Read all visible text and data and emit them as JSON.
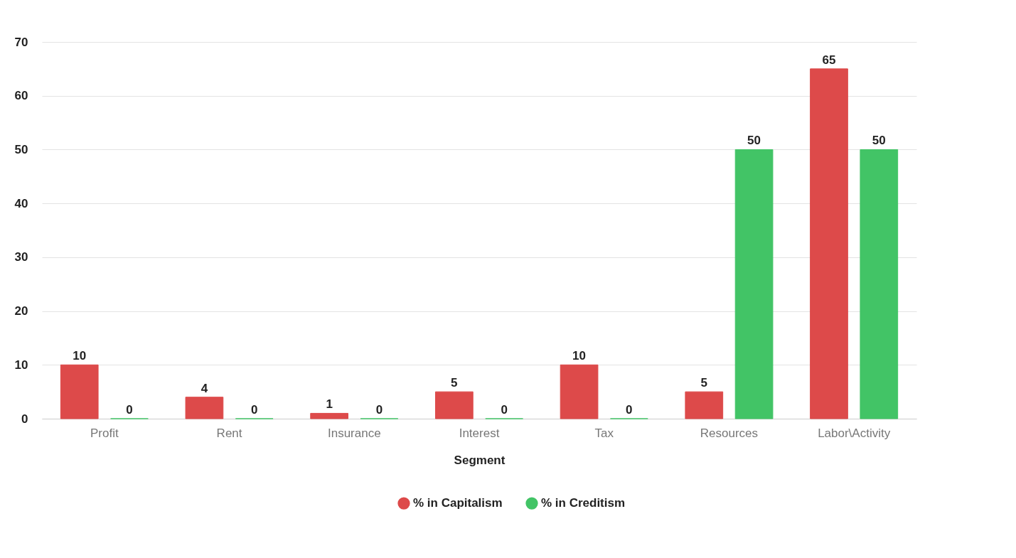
{
  "chart_data": {
    "type": "bar",
    "xlabel": "Segment",
    "categories": [
      "Profit",
      "Rent",
      "Insurance",
      "Interest",
      "Tax",
      "Resources",
      "Labor\\Activity"
    ],
    "series": [
      {
        "name": "% in Capitalism",
        "color": "#dd4a4a",
        "values": [
          10,
          4,
          1,
          5,
          10,
          5,
          65
        ]
      },
      {
        "name": "% in Creditism",
        "color": "#42c466",
        "values": [
          0,
          0,
          0,
          0,
          0,
          50,
          50
        ]
      }
    ],
    "ylim": [
      0,
      70
    ],
    "yticks": [
      0,
      10,
      20,
      30,
      40,
      50,
      60,
      70
    ],
    "grid": "y",
    "legend": "bottom",
    "data_labels": true
  }
}
